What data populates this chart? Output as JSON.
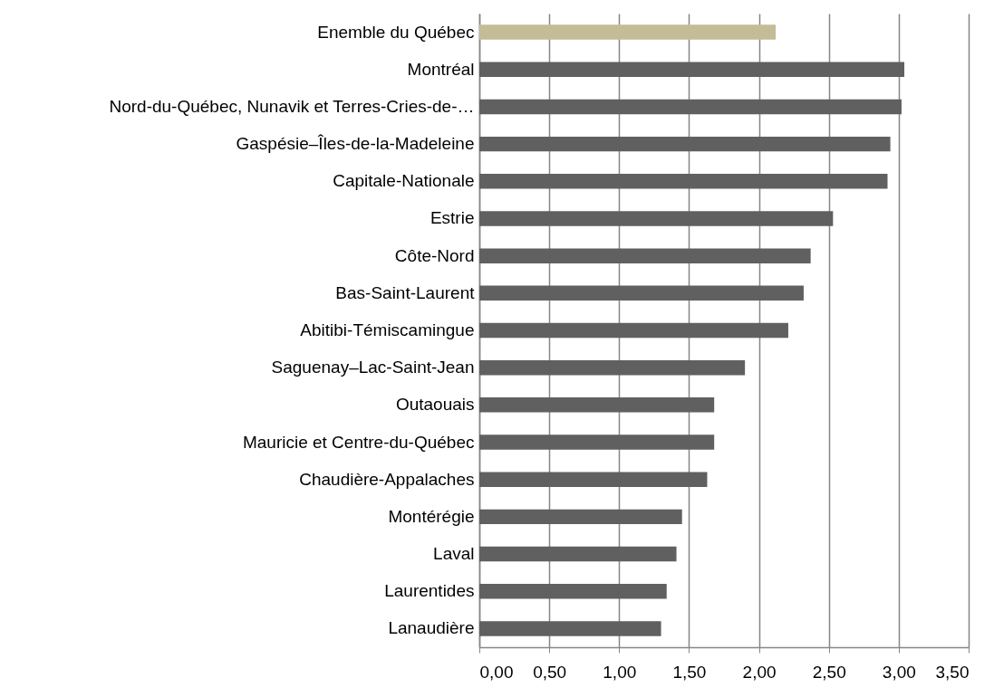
{
  "chart_data": {
    "type": "bar",
    "orientation": "horizontal",
    "categories": [
      "Enemble du Québec",
      "Montréal",
      "Nord-du-Québec, Nunavik et Terres-Cries-de-…",
      "Gaspésie–Îles-de-la-Madeleine",
      "Capitale-Nationale",
      "Estrie",
      "Côte-Nord",
      "Bas-Saint-Laurent",
      "Abitibi-Témiscamingue",
      "Saguenay–Lac-Saint-Jean",
      "Outaouais",
      "Mauricie et Centre-du-Québec",
      "Chaudière-Appalaches",
      "Montérégie",
      "Laval",
      "Laurentides",
      "Lanaudière"
    ],
    "values": [
      2.12,
      3.04,
      3.02,
      2.94,
      2.92,
      2.53,
      2.37,
      2.32,
      2.21,
      1.9,
      1.68,
      1.68,
      1.63,
      1.45,
      1.41,
      1.34,
      1.3
    ],
    "colors": [
      "#c4bc96",
      "#606060",
      "#606060",
      "#606060",
      "#606060",
      "#606060",
      "#606060",
      "#606060",
      "#606060",
      "#606060",
      "#606060",
      "#606060",
      "#606060",
      "#606060",
      "#606060",
      "#606060",
      "#606060"
    ],
    "xlim": [
      0,
      3.5
    ],
    "xticks": [
      {
        "value": 0,
        "label": "0,00"
      },
      {
        "value": 0.5,
        "label": "0,50"
      },
      {
        "value": 1,
        "label": "1,00"
      },
      {
        "value": 1.5,
        "label": "1,50"
      },
      {
        "value": 2,
        "label": "2,00"
      },
      {
        "value": 2.5,
        "label": "2,50"
      },
      {
        "value": 3,
        "label": "3,00"
      },
      {
        "value": 3.5,
        "label": "3,50"
      }
    ],
    "grid": "x"
  }
}
